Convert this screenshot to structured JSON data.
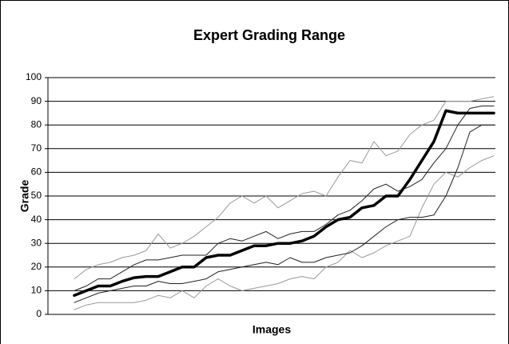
{
  "chart_data": {
    "type": "line",
    "title": "Expert Grading Range",
    "x_label": "Images",
    "y_label": "Grade",
    "categories": [
      null,
      null,
      null,
      null,
      null,
      null,
      null,
      null,
      null,
      null,
      null,
      null,
      null,
      null,
      null,
      null,
      null,
      null,
      null,
      null,
      null,
      null,
      null,
      null,
      null,
      null,
      null,
      null,
      null,
      null,
      null,
      null,
      null,
      null,
      null,
      null
    ],
    "ylim": [
      0,
      100
    ],
    "yticks": [
      0,
      10,
      20,
      30,
      40,
      50,
      60,
      70,
      80,
      90,
      100
    ],
    "grid": true,
    "legend": false,
    "series": [
      {
        "color": "#999999",
        "width": 1,
        "values": [
          15,
          19,
          21,
          22,
          24,
          25,
          27,
          34,
          28,
          30,
          33,
          37,
          41,
          47,
          50,
          47,
          50,
          45,
          48,
          51,
          52,
          50,
          58,
          65,
          64,
          73,
          67,
          69,
          76,
          80,
          82,
          90,
          90,
          90,
          91,
          92
        ]
      },
      {
        "color": "#999999",
        "width": 1,
        "values": [
          2,
          4,
          5,
          5,
          5,
          5,
          6,
          8,
          7,
          10,
          7,
          12,
          15,
          12,
          10,
          11,
          12,
          13,
          15,
          16,
          15,
          20,
          22,
          27,
          24,
          26,
          29,
          31,
          33,
          45,
          55,
          60,
          58,
          62,
          65,
          67
        ]
      },
      {
        "color": "#222222",
        "width": 1,
        "values": [
          10,
          12,
          15,
          15,
          18,
          21,
          23,
          23,
          24,
          25,
          25,
          25,
          30,
          32,
          31,
          33,
          35,
          32,
          34,
          35,
          35,
          38,
          42,
          44,
          48,
          53,
          55,
          52,
          54,
          57,
          64,
          70,
          80,
          87,
          88,
          88
        ]
      },
      {
        "color": "#222222",
        "width": 1,
        "values": [
          5,
          7,
          9,
          10,
          11,
          12,
          12,
          14,
          13,
          13,
          14,
          15,
          18,
          19,
          20,
          21,
          22,
          21,
          24,
          22,
          22,
          24,
          25,
          26,
          29,
          33,
          37,
          40,
          41,
          41,
          42,
          50,
          62,
          77,
          80,
          80
        ]
      },
      {
        "color": "#000000",
        "width": 3.5,
        "values": [
          8,
          10,
          12,
          12,
          14,
          15.5,
          16,
          16,
          18,
          20,
          20,
          24,
          25,
          25,
          27,
          29,
          29,
          30,
          30,
          31,
          33,
          37,
          40,
          41,
          45,
          46,
          50,
          50,
          57,
          65,
          73,
          86,
          85,
          85,
          85,
          85
        ]
      }
    ]
  }
}
